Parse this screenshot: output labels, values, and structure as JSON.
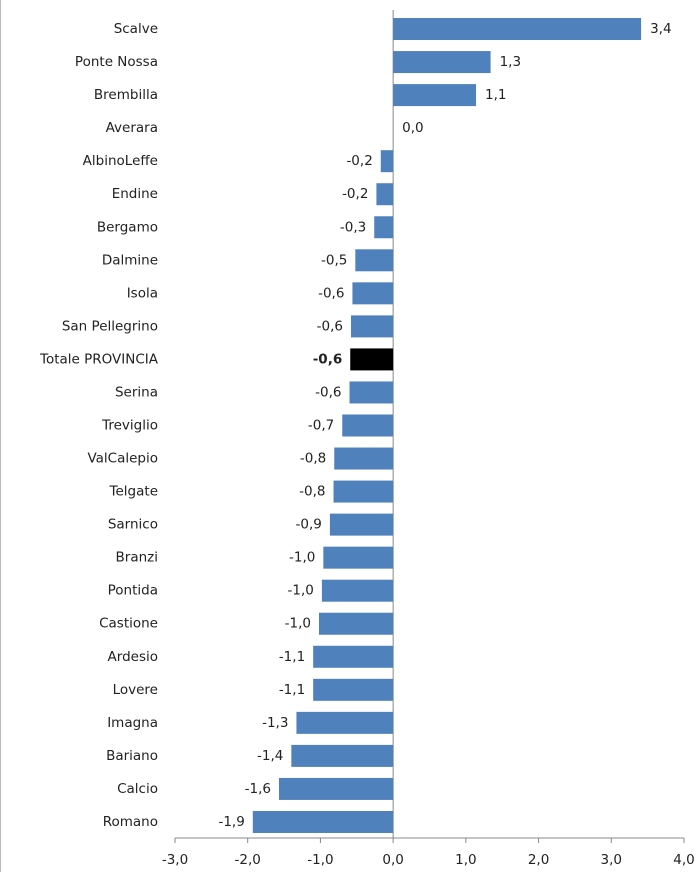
{
  "chart_data": {
    "type": "barh",
    "categories": [
      "Scalve",
      "Ponte Nossa",
      "Brembilla",
      "Averara",
      "AlbinoLeffe",
      "Endine",
      "Bergamo",
      "Dalmine",
      "Isola",
      "San Pellegrino",
      "Totale PROVINCIA",
      "Serina",
      "Treviglio",
      "ValCalepio",
      "Telgate",
      "Sarnico",
      "Branzi",
      "Pontida",
      "Castione",
      "Ardesio",
      "Lovere",
      "Imagna",
      "Bariano",
      "Calcio",
      "Romano"
    ],
    "values": [
      3.41,
      1.34,
      1.14,
      0.0,
      -0.17,
      -0.23,
      -0.26,
      -0.52,
      -0.56,
      -0.58,
      -0.59,
      -0.6,
      -0.7,
      -0.81,
      -0.82,
      -0.87,
      -0.96,
      -0.98,
      -1.02,
      -1.1,
      -1.1,
      -1.33,
      -1.4,
      -1.57,
      -1.93
    ],
    "value_labels": [
      "3,4",
      "1,3",
      "1,1",
      "0,0",
      "-0,2",
      "-0,2",
      "-0,3",
      "-0,5",
      "-0,6",
      "-0,6",
      "-0,6",
      "-0,6",
      "-0,7",
      "-0,8",
      "-0,8",
      "-0,9",
      "-1,0",
      "-1,0",
      "-1,0",
      "-1,1",
      "-1,1",
      "-1,3",
      "-1,4",
      "-1,6",
      "-1,9"
    ],
    "colors": [
      "#4f81bd",
      "#4f81bd",
      "#4f81bd",
      "#4f81bd",
      "#4f81bd",
      "#4f81bd",
      "#4f81bd",
      "#4f81bd",
      "#4f81bd",
      "#4f81bd",
      "#000000",
      "#4f81bd",
      "#4f81bd",
      "#4f81bd",
      "#4f81bd",
      "#4f81bd",
      "#4f81bd",
      "#4f81bd",
      "#4f81bd",
      "#4f81bd",
      "#4f81bd",
      "#4f81bd",
      "#4f81bd",
      "#4f81bd",
      "#4f81bd"
    ],
    "xlim": [
      -3,
      4
    ],
    "xticks": [
      {
        "value": -3,
        "label": "-3,0"
      },
      {
        "value": -2,
        "label": "-2,0"
      },
      {
        "value": -1,
        "label": "-1,0"
      },
      {
        "value": 0,
        "label": "0,0"
      },
      {
        "value": 1,
        "label": "1,0"
      },
      {
        "value": 2,
        "label": "2,0"
      },
      {
        "value": 3,
        "label": "3,0"
      },
      {
        "value": 4,
        "label": "4,0"
      }
    ]
  }
}
